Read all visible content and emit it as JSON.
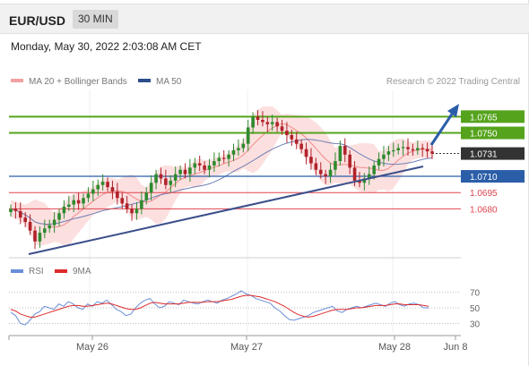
{
  "header": {
    "symbol": "EUR/USD",
    "timeframe": "30 MIN"
  },
  "timestamp": "Monday, May 30, 2022 2:03:08 AM CET",
  "legend": {
    "ma_bb": "MA 20 + Bollinger Bands",
    "ma50": "MA 50",
    "credit": "Research © 2022 Trading Central"
  },
  "rsi_legend": {
    "rsi": "RSI",
    "ma": "9MA"
  },
  "colors": {
    "green": "#55a31c",
    "blue": "#2b5ea8",
    "red": "#e0444e",
    "candle_up": "#2f8a2f",
    "candle_down": "#b0222a",
    "band": "#fbd6d6",
    "ma20": "#f28a8a",
    "ma50": "#6f7fb5",
    "rsi": "#6a8fd8",
    "rsi_ma": "#dd2b2b",
    "arrow": "#2b5ea8"
  },
  "chart_data": [
    {
      "type": "candlestick",
      "title": "",
      "x_ticks": [
        "May 26",
        "May 27",
        "May 28",
        "Jun 8"
      ],
      "ylim": [
        1.0635,
        1.079
      ],
      "levels": [
        {
          "label": "1.0765",
          "value": 1.0765,
          "kind": "resistance"
        },
        {
          "label": "1.0750",
          "value": 1.075,
          "kind": "resistance"
        },
        {
          "label": "1.0731",
          "value": 1.0731,
          "kind": "last"
        },
        {
          "label": "1.0710",
          "value": 1.071,
          "kind": "pivot"
        },
        {
          "label": "1.0695",
          "value": 1.0695,
          "kind": "support"
        },
        {
          "label": "1.0680",
          "value": 1.068,
          "kind": "support"
        }
      ],
      "closes": [
        1.068,
        1.0678,
        1.0672,
        1.0668,
        1.066,
        1.065,
        1.0658,
        1.0662,
        1.0665,
        1.067,
        1.0676,
        1.0682,
        1.0684,
        1.0688,
        1.0685,
        1.069,
        1.0694,
        1.0698,
        1.0702,
        1.0705,
        1.07,
        1.0696,
        1.069,
        1.0685,
        1.068,
        1.0676,
        1.068,
        1.0688,
        1.0695,
        1.0704,
        1.0712,
        1.0708,
        1.0702,
        1.0706,
        1.0712,
        1.0716,
        1.0712,
        1.0718,
        1.0722,
        1.072,
        1.0716,
        1.072,
        1.0724,
        1.0727,
        1.0726,
        1.073,
        1.0734,
        1.0736,
        1.074,
        1.0755,
        1.0765,
        1.0762,
        1.076,
        1.0758,
        1.076,
        1.0756,
        1.0752,
        1.0748,
        1.0744,
        1.074,
        1.0735,
        1.0728,
        1.0722,
        1.0716,
        1.0712,
        1.071,
        1.0716,
        1.0724,
        1.0738,
        1.073,
        1.0718,
        1.0706,
        1.0704,
        1.0708,
        1.0712,
        1.072,
        1.0726,
        1.073,
        1.0733,
        1.0734,
        1.0736,
        1.0737,
        1.0735,
        1.0734,
        1.0736,
        1.0735,
        1.0733,
        1.0731
      ]
    },
    {
      "type": "line",
      "title": "RSI",
      "ylim": [
        20,
        80
      ],
      "ticks": [
        "70",
        "50",
        "30"
      ],
      "series": [
        {
          "name": "RSI",
          "values": [
            44,
            40,
            30,
            28,
            34,
            42,
            45,
            52,
            50,
            48,
            55,
            52,
            58,
            55,
            50,
            48,
            55,
            52,
            58,
            56,
            60,
            54,
            48,
            45,
            40,
            42,
            50,
            56,
            60,
            62,
            55,
            50,
            52,
            58,
            56,
            54,
            60,
            58,
            56,
            55,
            58,
            60,
            58,
            56,
            60,
            62,
            65,
            68,
            72,
            68,
            66,
            62,
            60,
            58,
            56,
            50,
            46,
            40,
            35,
            34,
            36,
            38,
            40,
            44,
            46,
            48,
            50,
            52,
            46,
            44,
            48,
            50,
            52,
            50,
            52,
            54,
            56,
            54,
            52,
            56,
            58,
            54,
            52,
            55,
            56,
            54,
            50,
            50
          ]
        },
        {
          "name": "9MA",
          "values": [
            48,
            46,
            42,
            40,
            38,
            38,
            40,
            42,
            44,
            46,
            48,
            50,
            52,
            53,
            53,
            52,
            52,
            53,
            54,
            55,
            56,
            55,
            53,
            51,
            49,
            48,
            48,
            50,
            53,
            56,
            57,
            56,
            55,
            55,
            55,
            55,
            56,
            57,
            57,
            57,
            57,
            58,
            58,
            58,
            59,
            60,
            61,
            63,
            65,
            66,
            66,
            65,
            64,
            62,
            60,
            58,
            55,
            52,
            48,
            44,
            41,
            39,
            38,
            39,
            41,
            43,
            45,
            47,
            48,
            48,
            48,
            49,
            50,
            50,
            51,
            52,
            53,
            53,
            53,
            54,
            55,
            55,
            54,
            54,
            54,
            54,
            53,
            52
          ]
        }
      ]
    }
  ]
}
